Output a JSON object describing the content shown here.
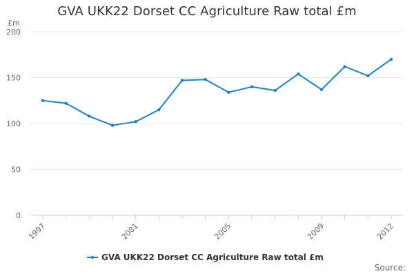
{
  "chart_data": {
    "type": "line",
    "title": "GVA UKK22 Dorset CC Agriculture Raw total £m",
    "ylabel": "£m",
    "xlabel": "",
    "x": [
      1997,
      1998,
      1999,
      2000,
      2001,
      2002,
      2003,
      2004,
      2005,
      2006,
      2007,
      2008,
      2009,
      2010,
      2011,
      2012
    ],
    "x_tick_labels": [
      "1997",
      "2001",
      "2005",
      "2009",
      "2012"
    ],
    "ylim": [
      0,
      200
    ],
    "y_ticks": [
      0,
      50,
      100,
      150,
      200
    ],
    "grid": true,
    "legend_position": "bottom",
    "series": [
      {
        "name": "GVA UKK22 Dorset CC Agriculture Raw total £m",
        "color": "#1f7fbf",
        "values": [
          125,
          122,
          108,
          98,
          102,
          115,
          147,
          148,
          134,
          140,
          136,
          154,
          137,
          162,
          152,
          170
        ]
      }
    ]
  },
  "footer": {
    "source_label": "Source:"
  }
}
